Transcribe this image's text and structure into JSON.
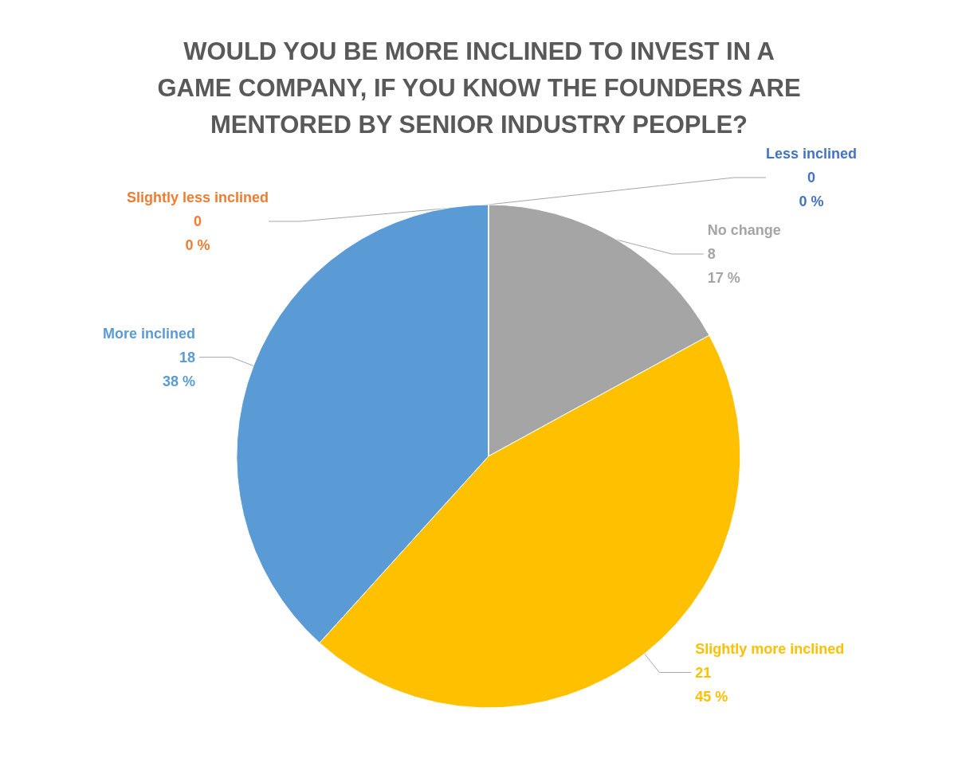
{
  "chart_data": {
    "type": "pie",
    "title": "WOULD YOU BE MORE INCLINED TO INVEST IN A\nGAME COMPANY, IF YOU KNOW THE FOUNDERS ARE\nMENTORED BY SENIOR INDUSTRY PEOPLE?",
    "categories": [
      "Less inclined",
      "No change",
      "Slightly more inclined",
      "More inclined",
      "Slightly less inclined"
    ],
    "values": [
      0,
      8,
      21,
      18,
      0
    ],
    "colors": [
      "#4472c4",
      "#a5a5a5",
      "#ffc000",
      "#5b9bd5",
      "#ed7d31"
    ],
    "value_labels": [
      "0\n0 %",
      "8\n17 %",
      "21\n45 %",
      "18\n38 %",
      "0\n0 %"
    ],
    "legend": false
  }
}
